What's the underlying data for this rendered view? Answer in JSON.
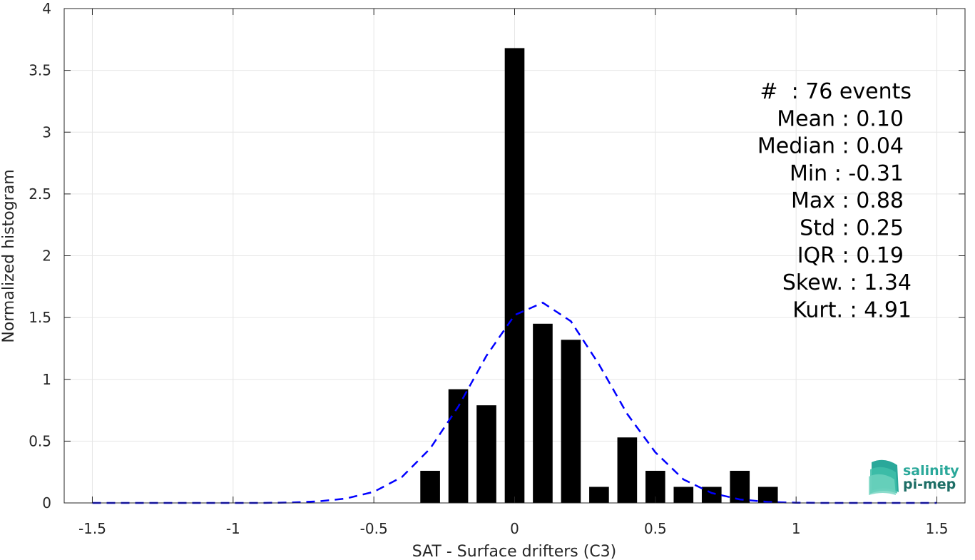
{
  "chart_data": {
    "type": "bar",
    "xlabel": "SAT - Surface drifters (C3)",
    "ylabel": "Normalized histogram",
    "xlim": [
      -1.6,
      1.6
    ],
    "ylim": [
      0,
      4
    ],
    "x_ticks": [
      -1.5,
      -1,
      -0.5,
      0,
      0.5,
      1,
      1.5
    ],
    "x_tick_labels": [
      "-1.5",
      "-1",
      "-0.5",
      "0",
      "0.5",
      "1",
      "1.5"
    ],
    "y_ticks": [
      0,
      0.5,
      1,
      1.5,
      2,
      2.5,
      3,
      3.5,
      4
    ],
    "y_tick_labels": [
      "0",
      "0.5",
      "1",
      "1.5",
      "2",
      "2.5",
      "3",
      "3.5",
      "4"
    ],
    "grid": true,
    "bar_width": 0.07,
    "bars": [
      {
        "x": -0.3,
        "value": 0.26
      },
      {
        "x": -0.2,
        "value": 0.92
      },
      {
        "x": -0.1,
        "value": 0.79
      },
      {
        "x": 0.0,
        "value": 3.68
      },
      {
        "x": 0.1,
        "value": 1.45
      },
      {
        "x": 0.2,
        "value": 1.32
      },
      {
        "x": 0.3,
        "value": 0.13
      },
      {
        "x": 0.4,
        "value": 0.53
      },
      {
        "x": 0.5,
        "value": 0.26
      },
      {
        "x": 0.6,
        "value": 0.13
      },
      {
        "x": 0.7,
        "value": 0.13
      },
      {
        "x": 0.8,
        "value": 0.26
      },
      {
        "x": 0.9,
        "value": 0.13
      }
    ],
    "fit_curve": {
      "style": "dashed",
      "color": "#0000ff",
      "x": [
        -1.5,
        -1.4,
        -1.3,
        -1.2,
        -1.1,
        -1.0,
        -0.9,
        -0.8,
        -0.7,
        -0.6,
        -0.5,
        -0.4,
        -0.3,
        -0.2,
        -0.1,
        0.0,
        0.1,
        0.2,
        0.3,
        0.4,
        0.5,
        0.6,
        0.7,
        0.8,
        0.9,
        1.0,
        1.1,
        1.2,
        1.3,
        1.4,
        1.5
      ],
      "y": [
        0,
        0,
        0,
        0,
        0,
        0,
        0,
        0.003,
        0.012,
        0.035,
        0.09,
        0.21,
        0.44,
        0.78,
        1.19,
        1.52,
        1.62,
        1.47,
        1.12,
        0.72,
        0.41,
        0.19,
        0.08,
        0.028,
        0.008,
        0.002,
        0,
        0,
        0,
        0,
        0
      ]
    },
    "stats_box": {
      "position": "top-right",
      "lines": [
        "#  : 76 events",
        "Mean : 0.10",
        "Median : 0.04",
        "Min : -0.31",
        "Max : 0.88",
        "Std : 0.25",
        "IQR : 0.19",
        "Skew. : 1.34",
        "Kurt. : 4.91"
      ]
    }
  },
  "logo": {
    "line1": "salinity",
    "line2": "pi-mep",
    "color1": "#2aa89a",
    "color2": "#1d6e66"
  }
}
